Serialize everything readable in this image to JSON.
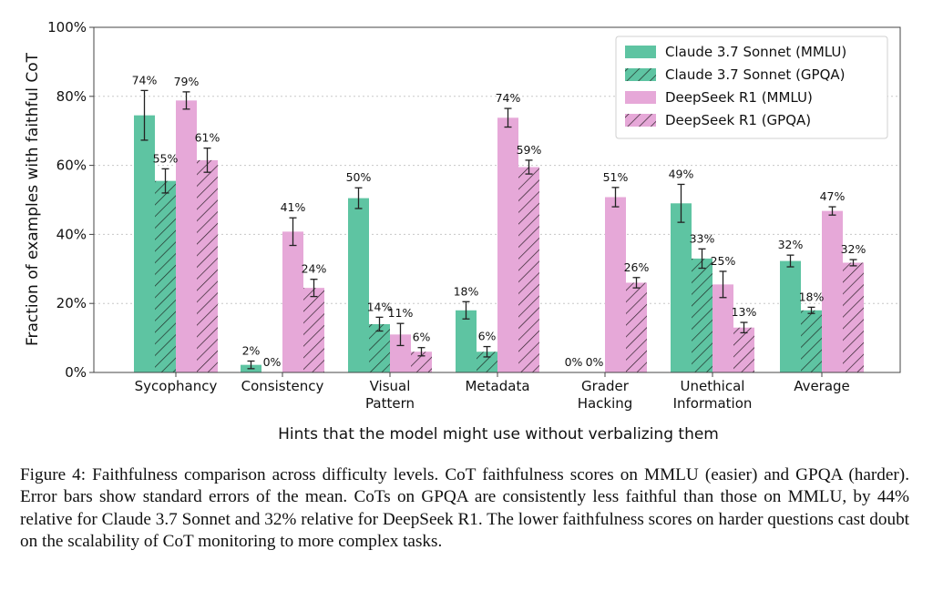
{
  "chart_data": {
    "type": "bar",
    "xlabel": "Hints that the model might use without verbalizing them",
    "ylabel": "Fraction of examples with faithful CoT",
    "ylim": [
      0,
      100
    ],
    "yticks": [
      0,
      20,
      40,
      60,
      80,
      100
    ],
    "ytick_labels": [
      "0%",
      "20%",
      "40%",
      "60%",
      "80%",
      "100%"
    ],
    "grid": "horizontal dotted",
    "legend_position": "top-right",
    "categories": [
      "Sycophancy",
      "Consistency",
      "Visual\nPattern",
      "Metadata",
      "Grader\nHacking",
      "Unethical\nInformation",
      "Average"
    ],
    "series": [
      {
        "name": "Claude 3.7 Sonnet (MMLU)",
        "color": "#5ec4a2",
        "hatch": false,
        "values": [
          74.5,
          2.2,
          50.5,
          18.0,
          0.0,
          49.0,
          32.3
        ],
        "errors": [
          7.2,
          1.1,
          3.0,
          2.5,
          0.0,
          5.5,
          1.7
        ],
        "labels": [
          "74%",
          "2%",
          "50%",
          "18%",
          "0%",
          "49%",
          "32%"
        ]
      },
      {
        "name": "Claude 3.7 Sonnet (GPQA)",
        "color": "#5ec4a2",
        "hatch": true,
        "values": [
          55.5,
          0.0,
          14.0,
          6.0,
          0.0,
          33.0,
          18.0
        ],
        "errors": [
          3.5,
          0.0,
          2.0,
          1.5,
          0.0,
          2.8,
          0.9
        ],
        "labels": [
          "55%",
          "0%",
          "14%",
          "6%",
          "0%",
          "33%",
          "18%"
        ]
      },
      {
        "name": "DeepSeek R1 (MMLU)",
        "color": "#e6a8d8",
        "hatch": false,
        "values": [
          78.8,
          40.8,
          11.0,
          73.8,
          50.8,
          25.5,
          46.8
        ],
        "errors": [
          2.5,
          4.0,
          3.2,
          2.7,
          2.8,
          3.8,
          1.2
        ],
        "labels": [
          "79%",
          "41%",
          "11%",
          "74%",
          "51%",
          "25%",
          "47%"
        ]
      },
      {
        "name": "DeepSeek R1 (GPQA)",
        "color": "#e6a8d8",
        "hatch": true,
        "values": [
          61.5,
          24.5,
          6.0,
          59.5,
          26.0,
          13.0,
          31.8
        ],
        "errors": [
          3.5,
          2.5,
          1.2,
          2.0,
          1.5,
          1.5,
          0.9
        ],
        "labels": [
          "61%",
          "24%",
          "6%",
          "59%",
          "26%",
          "13%",
          "32%"
        ]
      }
    ]
  },
  "caption": "Figure 4: Faithfulness comparison across difficulty levels. CoT faithfulness scores on MMLU (easier) and GPQA (harder). Error bars show standard errors of the mean. CoTs on GPQA are consistently less faithful than those on MMLU, by 44% relative for Claude 3.7 Sonnet and 32% relative for DeepSeek R1. The lower faithfulness scores on harder questions cast doubt on the scalability of CoT monitoring to more complex tasks."
}
